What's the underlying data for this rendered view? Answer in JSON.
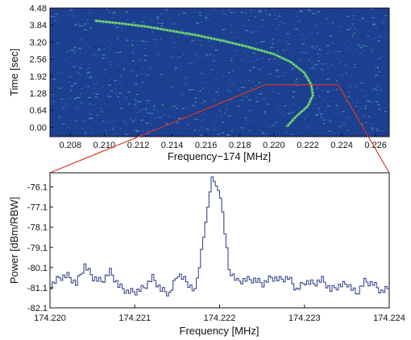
{
  "chart_data": [
    {
      "type": "heatmap",
      "description_kind": "spectrogram",
      "xlabel": "Frequency−174 [MHz]",
      "ylabel": "Time [sec]",
      "xlim": [
        0.2068,
        0.2268
      ],
      "ylim": [
        -0.35,
        4.48
      ],
      "x_ticks": [
        "0.208",
        "0.210",
        "0.212",
        "0.214",
        "0.216",
        "0.218",
        "0.220",
        "0.222",
        "0.224",
        "0.226"
      ],
      "y_ticks": [
        "4.48",
        "3.84",
        "3.20",
        "2.56",
        "1.92",
        "1.28",
        "0.64",
        "0.00"
      ],
      "colors": {
        "background": "#1d3f8f",
        "noise_light": "#4aa3d8",
        "trace_mid": "#3fbf7f",
        "trace_peak": "#f2e24a",
        "zoom_box": "#d23a2a"
      },
      "trace": [
        {
          "x": 0.2095,
          "y": 4.0
        },
        {
          "x": 0.211,
          "y": 3.9
        },
        {
          "x": 0.2125,
          "y": 3.78
        },
        {
          "x": 0.214,
          "y": 3.62
        },
        {
          "x": 0.2155,
          "y": 3.45
        },
        {
          "x": 0.217,
          "y": 3.25
        },
        {
          "x": 0.2185,
          "y": 3.02
        },
        {
          "x": 0.22,
          "y": 2.75
        },
        {
          "x": 0.221,
          "y": 2.45
        },
        {
          "x": 0.2218,
          "y": 2.05
        },
        {
          "x": 0.2222,
          "y": 1.6
        },
        {
          "x": 0.2223,
          "y": 1.2
        },
        {
          "x": 0.222,
          "y": 0.8
        },
        {
          "x": 0.2213,
          "y": 0.4
        },
        {
          "x": 0.2208,
          "y": 0.05
        }
      ],
      "zoom_region": {
        "x0": 0.2195,
        "x1": 0.2238,
        "y": 1.6
      }
    },
    {
      "type": "line",
      "description_kind": "step",
      "xlabel": "Frequency [MHz]",
      "ylabel": "Power  [dBm/RBW]",
      "xlim": [
        174.22,
        174.224
      ],
      "ylim": [
        -82.1,
        -75.4
      ],
      "x_ticks": [
        "174.220",
        "174.221",
        "174.222",
        "174.223",
        "174.224"
      ],
      "y_ticks": [
        "-76.1",
        "-77.1",
        "-78.1",
        "-79.1",
        "-80.1",
        "-81.1",
        "-82.1"
      ],
      "line_color": "#3a4a8c",
      "x": [
        174.22,
        174.2201,
        174.2202,
        174.2203,
        174.2204,
        174.2205,
        174.2206,
        174.2207,
        174.2208,
        174.2209,
        174.221,
        174.2211,
        174.2212,
        174.2213,
        174.2214,
        174.2215,
        174.2216,
        174.2217,
        174.2218,
        174.2219,
        174.222,
        174.2221,
        174.2222,
        174.2223,
        174.2224,
        174.2225,
        174.2226,
        174.2227,
        174.2228,
        174.2229,
        174.223,
        174.2231,
        174.2232,
        174.2233,
        174.2234,
        174.2235,
        174.2236,
        174.2237,
        174.2238,
        174.2239,
        174.224
      ],
      "y": [
        -81.0,
        -80.6,
        -80.5,
        -80.9,
        -80.0,
        -80.6,
        -80.8,
        -80.3,
        -81.0,
        -81.3,
        -81.3,
        -81.1,
        -80.6,
        -81.2,
        -81.4,
        -80.4,
        -80.8,
        -81.3,
        -78.6,
        -75.6,
        -76.5,
        -80.2,
        -80.8,
        -80.7,
        -80.7,
        -80.9,
        -80.6,
        -80.7,
        -80.6,
        -81.2,
        -80.8,
        -80.9,
        -80.7,
        -81.2,
        -81.0,
        -80.9,
        -81.4,
        -80.8,
        -80.9,
        -81.3,
        -81.1
      ]
    }
  ]
}
